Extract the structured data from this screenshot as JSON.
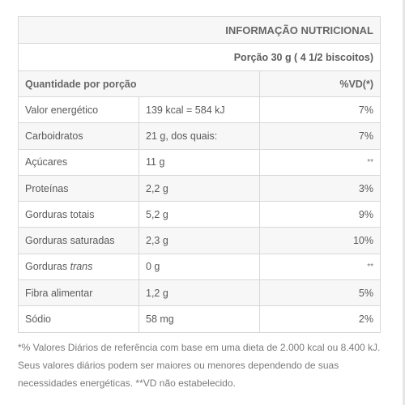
{
  "table": {
    "title": "INFORMAÇÃO NUTRICIONAL",
    "portion": "Porção 30 g ( 4 1/2 biscoitos)",
    "col_quantity": "Quantidade por porção",
    "col_vd": "%VD(*)",
    "rows": [
      {
        "nutrient": "Valor energético",
        "amount": "139 kcal = 584 kJ",
        "vd": "7%"
      },
      {
        "nutrient": "Carboidratos",
        "amount": "21 g, dos quais:",
        "vd": "7%"
      },
      {
        "nutrient": "Açúcares",
        "amount": "11 g",
        "vd": "**"
      },
      {
        "nutrient": "Proteínas",
        "amount": "2,2 g",
        "vd": "3%"
      },
      {
        "nutrient": "Gorduras totais",
        "amount": "5,2 g",
        "vd": "9%"
      },
      {
        "nutrient": "Gorduras saturadas",
        "amount": "2,3 g",
        "vd": "10%"
      },
      {
        "nutrient": "Gorduras",
        "nutrient_italic": "trans",
        "amount": "0 g",
        "vd": "**"
      },
      {
        "nutrient": "Fibra alimentar",
        "amount": "1,2 g",
        "vd": "5%"
      },
      {
        "nutrient": "Sódio",
        "amount": "58 mg",
        "vd": "2%"
      }
    ]
  },
  "footnote": "*% Valores Diários de referência com base em uma dieta de 2.000 kcal ou 8.400 kJ. Seus valores diários podem ser maiores ou menores dependendo de suas necessidades energéticas. **VD não estabelecido."
}
